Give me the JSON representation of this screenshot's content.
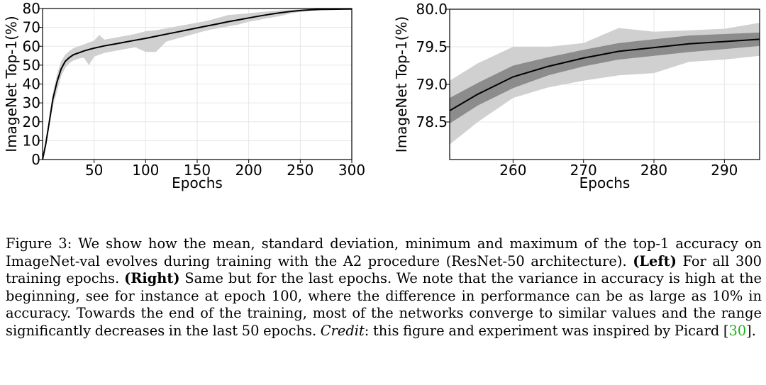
{
  "chart_data": [
    {
      "type": "line",
      "panel": "left",
      "xlabel": "Epochs",
      "ylabel": "ImageNet Top-1(%)",
      "xlim": [
        0,
        300
      ],
      "ylim": [
        0,
        80
      ],
      "xticks": [
        50,
        100,
        150,
        200,
        250,
        300
      ],
      "yticks": [
        0,
        10,
        20,
        30,
        40,
        50,
        60,
        70,
        80
      ],
      "grid": true,
      "series": [
        {
          "name": "mean",
          "color": "#000000",
          "x": [
            0,
            3,
            6,
            10,
            14,
            18,
            22,
            26,
            30,
            35,
            40,
            45,
            50,
            55,
            60,
            70,
            80,
            90,
            100,
            110,
            120,
            130,
            140,
            150,
            160,
            170,
            180,
            190,
            200,
            210,
            220,
            230,
            240,
            250,
            260,
            270,
            280,
            290,
            300
          ],
          "y": [
            0,
            8,
            18,
            32,
            41,
            48,
            52,
            54,
            55.5,
            56.5,
            57.5,
            58.3,
            59,
            59.6,
            60.2,
            61.2,
            62.2,
            63.2,
            64.2,
            65.3,
            66.4,
            67.5,
            68.6,
            69.7,
            70.8,
            71.9,
            73,
            74,
            75,
            76,
            76.9,
            77.7,
            78.4,
            78.9,
            79.3,
            79.5,
            79.6,
            79.65,
            79.7
          ]
        },
        {
          "name": "max",
          "color": "#d0d0d0",
          "x": [
            0,
            3,
            6,
            10,
            14,
            18,
            22,
            26,
            30,
            35,
            40,
            45,
            50,
            55,
            60,
            70,
            80,
            90,
            100,
            110,
            120,
            130,
            140,
            150,
            160,
            170,
            180,
            190,
            200,
            210,
            220,
            230,
            240,
            250,
            260,
            270,
            280,
            290,
            300
          ],
          "y": [
            0,
            10,
            20,
            35,
            45,
            52,
            55.5,
            57.5,
            59,
            60,
            61,
            62,
            63,
            66,
            63.5,
            64.5,
            65.5,
            66.5,
            68,
            68.5,
            69.5,
            70.5,
            71.5,
            72.5,
            73.5,
            75,
            76.5,
            77,
            77.5,
            78,
            78.5,
            79,
            79.3,
            79.6,
            79.8,
            79.9,
            79.95,
            80,
            80
          ]
        },
        {
          "name": "min",
          "color": "#d0d0d0",
          "x": [
            0,
            3,
            6,
            10,
            14,
            18,
            22,
            26,
            30,
            35,
            40,
            45,
            50,
            55,
            60,
            70,
            80,
            90,
            100,
            110,
            120,
            130,
            140,
            150,
            160,
            170,
            180,
            190,
            200,
            210,
            220,
            230,
            240,
            250,
            260,
            270,
            280,
            290,
            300
          ],
          "y": [
            0,
            6,
            16,
            28,
            36,
            44,
            48.5,
            51,
            52.5,
            53.5,
            54,
            50,
            54.5,
            55.5,
            56.5,
            57.5,
            58.5,
            59.5,
            57,
            57,
            62.5,
            64,
            65.5,
            67,
            68.5,
            69.5,
            70.5,
            71.5,
            73,
            74,
            75,
            76,
            77.3,
            78.2,
            78.8,
            79.1,
            79.3,
            79.4,
            79.5
          ]
        }
      ]
    },
    {
      "type": "line",
      "panel": "right",
      "xlabel": "Epochs",
      "ylabel": "ImageNet Top-1(%)",
      "xlim": [
        251,
        295
      ],
      "ylim": [
        78.0,
        80.0
      ],
      "xticks": [
        260,
        270,
        280,
        290
      ],
      "yticks": [
        78.5,
        79.0,
        79.5,
        80.0
      ],
      "ytick_labels": [
        "78.5",
        "79.0",
        "79.5",
        "80.0"
      ],
      "grid": true,
      "series": [
        {
          "name": "mean",
          "color": "#000000",
          "x": [
            251,
            255,
            260,
            265,
            270,
            275,
            280,
            285,
            290,
            295
          ],
          "y": [
            78.65,
            78.87,
            79.1,
            79.24,
            79.35,
            79.44,
            79.49,
            79.54,
            79.57,
            79.6
          ]
        },
        {
          "name": "mean + std",
          "color": "#8c8c8c",
          "x": [
            251,
            255,
            260,
            265,
            270,
            275,
            280,
            285,
            290,
            295
          ],
          "y": [
            78.82,
            79.02,
            79.25,
            79.36,
            79.46,
            79.55,
            79.6,
            79.65,
            79.67,
            79.69
          ]
        },
        {
          "name": "mean - std",
          "color": "#8c8c8c",
          "x": [
            251,
            255,
            260,
            265,
            270,
            275,
            280,
            285,
            290,
            295
          ],
          "y": [
            78.48,
            78.72,
            78.95,
            79.12,
            79.24,
            79.33,
            79.38,
            79.43,
            79.47,
            79.51
          ]
        },
        {
          "name": "max",
          "color": "#d0d0d0",
          "x": [
            251,
            255,
            260,
            265,
            270,
            275,
            280,
            285,
            290,
            295
          ],
          "y": [
            79.05,
            79.28,
            79.5,
            79.5,
            79.55,
            79.75,
            79.7,
            79.72,
            79.74,
            79.82
          ]
        },
        {
          "name": "min",
          "color": "#d0d0d0",
          "x": [
            251,
            255,
            260,
            265,
            270,
            275,
            280,
            285,
            290,
            295
          ],
          "y": [
            78.2,
            78.5,
            78.82,
            78.96,
            79.05,
            79.12,
            79.15,
            79.3,
            79.33,
            79.38
          ]
        }
      ]
    }
  ],
  "caption": {
    "s1": "Figure 3: We show how the mean, standard deviation, minimum and maximum of the top-1 accuracy on ImageNet-val evolves during training with the A2 procedure (ResNet-50 architecture).",
    "left_label": "(Left)",
    "s2": "For all 300 training epochs.",
    "right_label": "(Right)",
    "s3": "Same but for the last epochs. We note that the variance in accuracy is high at the beginning, see for instance at epoch 100, where the difference in performance can be as large as 10% in accuracy. Towards the end of the training, most of the networks converge to similar values and the range significantly decreases in the last 50 epochs.",
    "credit_label": "Credit",
    "s4": ": this figure and experiment was inspired by Picard [",
    "ref": "30",
    "s5": "]."
  }
}
